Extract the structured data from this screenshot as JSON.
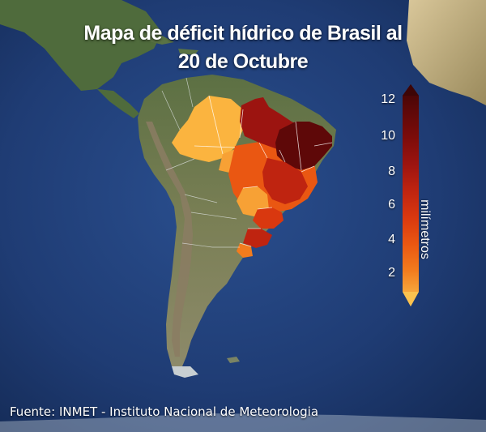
{
  "title": {
    "line1": "Mapa de déficit hídrico de Brasil al",
    "line2": "20 de Octubre"
  },
  "legend": {
    "unit": "milímetros",
    "ticks": [
      "12",
      "10",
      "8",
      "6",
      "4",
      "2"
    ],
    "colors": [
      "#3d0506",
      "#5e0808",
      "#7c0c0a",
      "#9c1410",
      "#bf2410",
      "#d9380f",
      "#ea5712",
      "#f27c1e",
      "#f7a135",
      "#fbc24f"
    ]
  },
  "source": "Fuente: INMET - Instituto Nacional de Meteorologia",
  "colors": {
    "ocean": "#1b3566",
    "land": "#6b7a4a",
    "ice": "#e6edf2"
  }
}
